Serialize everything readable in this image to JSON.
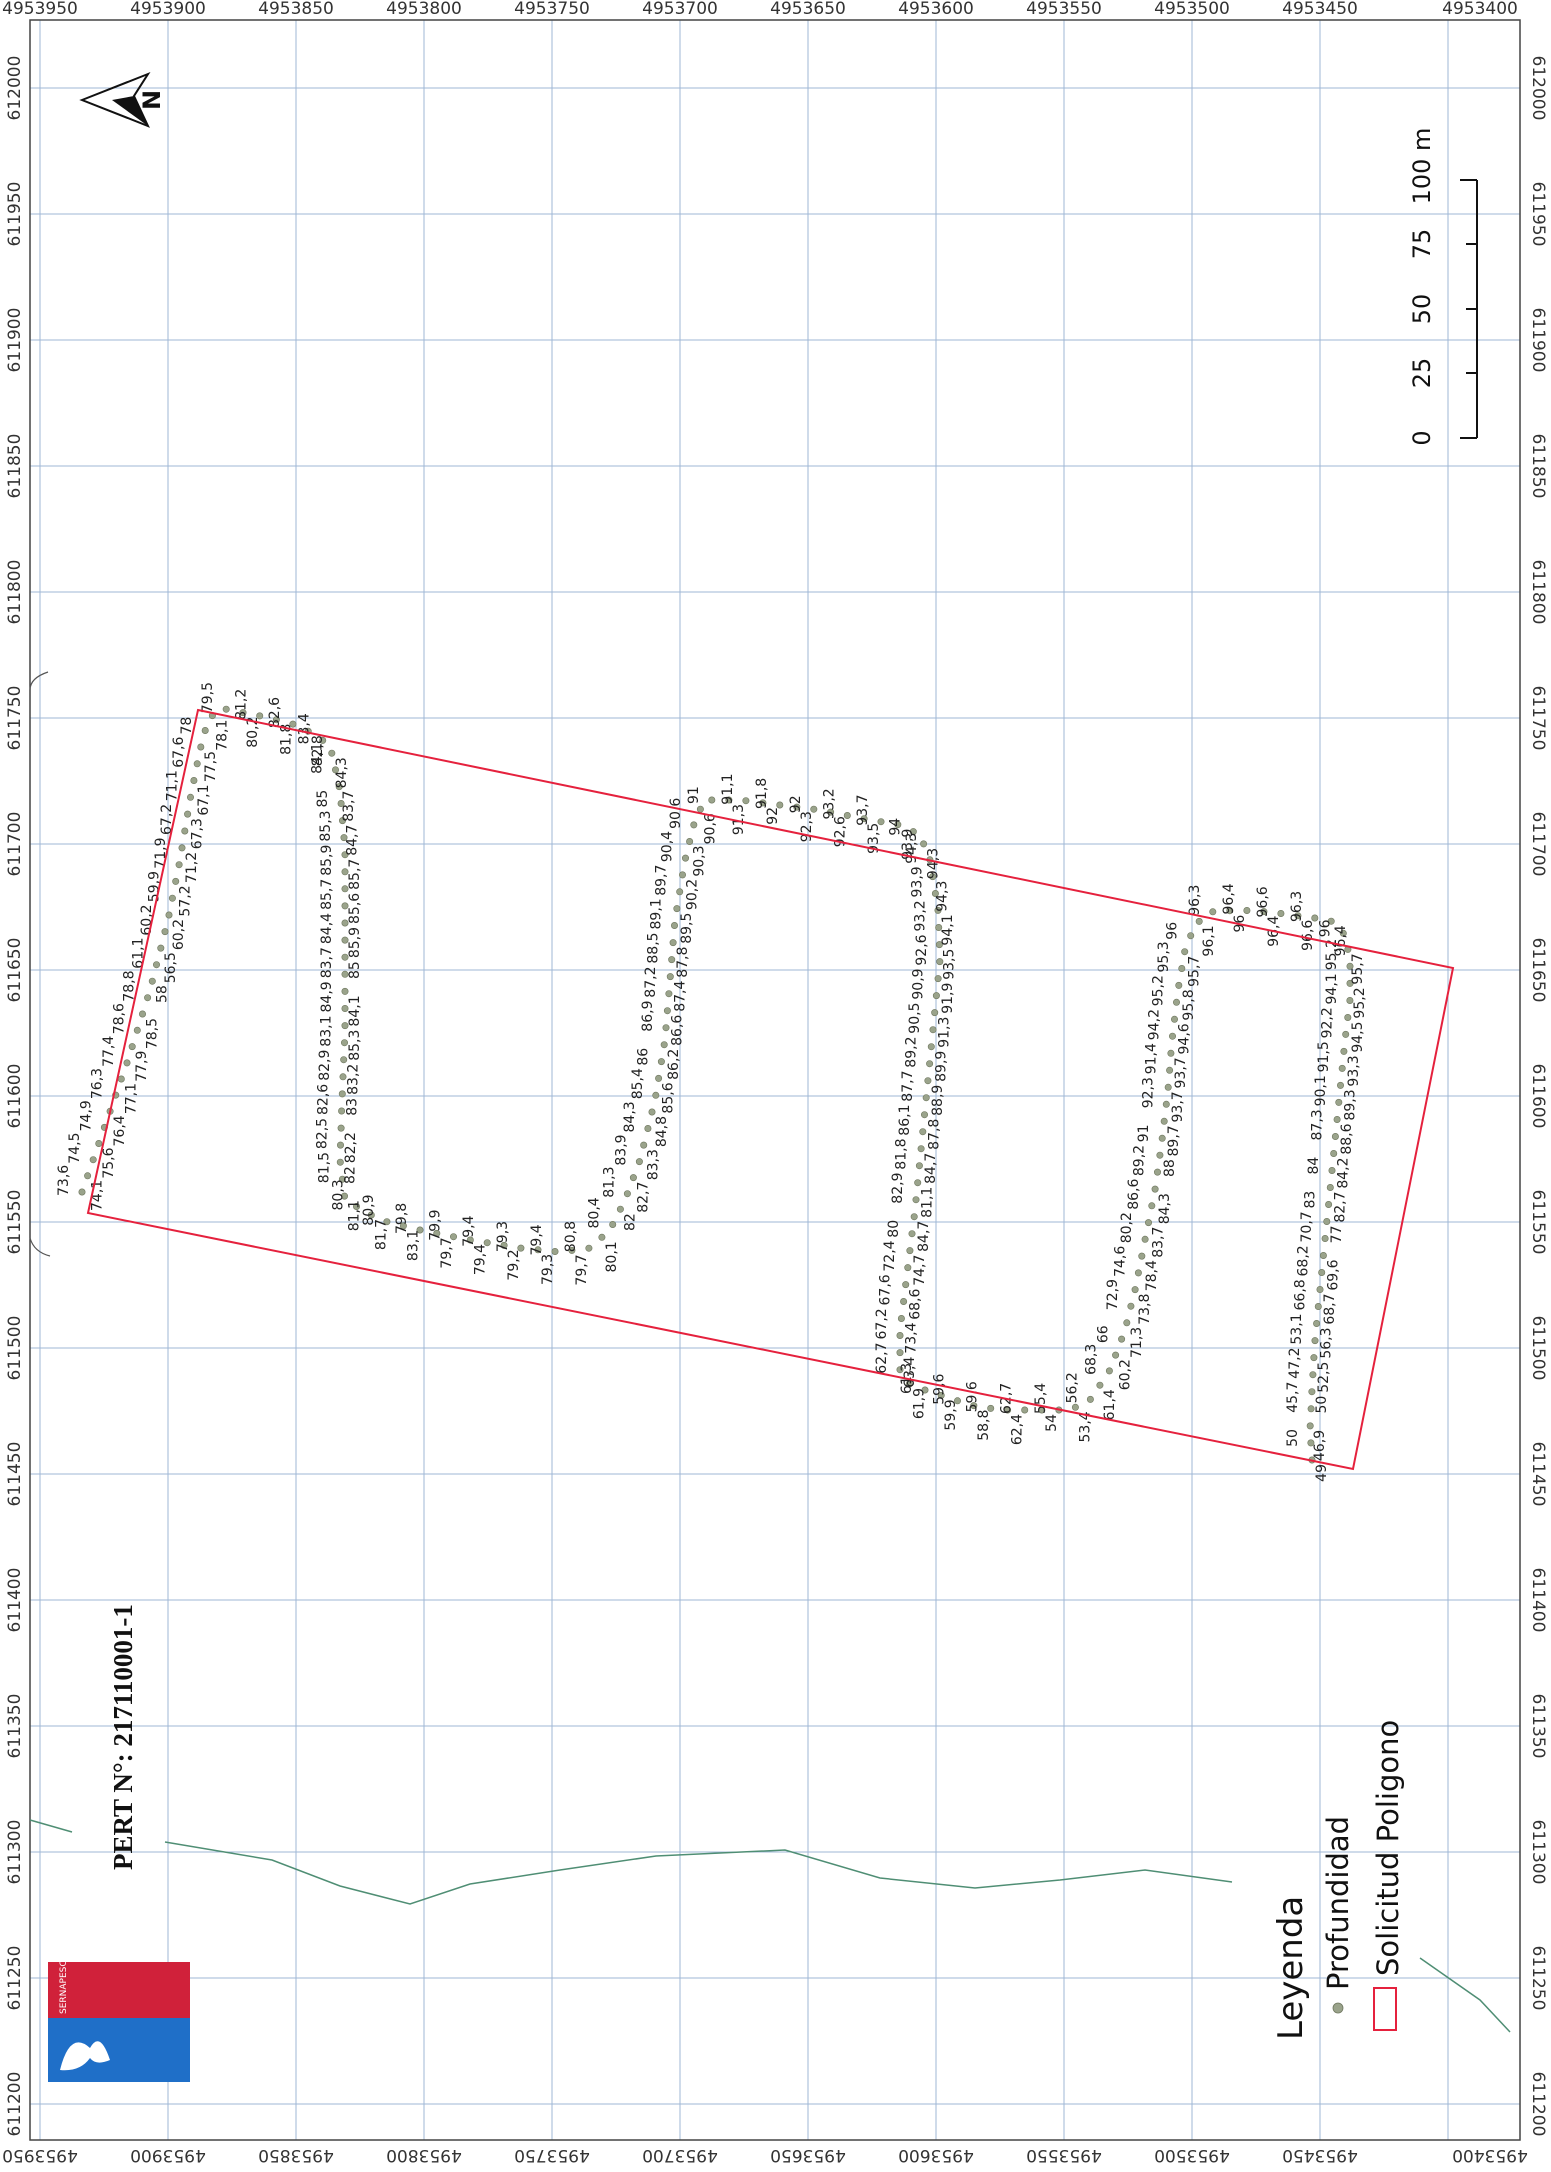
{
  "map": {
    "grid_x_labels": [
      "4953950",
      "4953900",
      "4953850",
      "4953800",
      "4953750",
      "4953700",
      "4953650",
      "4953600",
      "4953550",
      "4953500",
      "4953450",
      "4953400"
    ],
    "grid_y_labels": [
      "612000",
      "611950",
      "611900",
      "611850",
      "611800",
      "611750",
      "611700",
      "611650",
      "611600",
      "611550",
      "611500",
      "611450",
      "611400",
      "611350",
      "611300",
      "611250",
      "611200"
    ],
    "north_label": "N",
    "scale_labels": [
      "0",
      "25",
      "50",
      "75",
      "100 m"
    ],
    "pert_number": "PERT N°: 217110001-1",
    "legend": {
      "title": "Leyenda",
      "items": [
        {
          "label": "Profundidad"
        },
        {
          "label": "Solicitud Poligono"
        }
      ]
    },
    "logo_text": "SERNAPESCA",
    "colors": {
      "polygon": "#e5213d",
      "grid": "#9fb7d6",
      "depth_point": "#9aa38b",
      "coastline": "#4f8e74",
      "logo_red": "#d0213a",
      "logo_blue": "#1f6fc8"
    },
    "depth_labels": [
      "73,6",
      "74,1",
      "74,5",
      "75,6",
      "74,9",
      "76,4",
      "76,3",
      "77,1",
      "77,4",
      "77,9",
      "78,6",
      "78,5",
      "78,8",
      "58",
      "61,1",
      "56,5",
      "60,2",
      "60,2",
      "59,9",
      "57,2",
      "71,9",
      "71,2",
      "67,2",
      "67,3",
      "71,1",
      "67,1",
      "67,6",
      "77,5",
      "78",
      "78,1",
      "79,5",
      "80,2",
      "81,2",
      "81,8",
      "82,6",
      "82,8",
      "83,4",
      "84,3",
      "84,1",
      "83,7",
      "85",
      "84,7",
      "85,3",
      "85,7",
      "85,9",
      "85,6",
      "85,7",
      "85,9",
      "84,4",
      "85",
      "83,7",
      "84,1",
      "84,9",
      "85,3",
      "83,1",
      "83,2",
      "82,9",
      "83",
      "82,6",
      "82,2",
      "82,5",
      "82",
      "81,5",
      "81,1",
      "80,3",
      "81,7",
      "80,9",
      "83,1",
      "79,8",
      "79,7",
      "79,9",
      "79,4",
      "79,4",
      "79,2",
      "79,3",
      "79,3",
      "79,4",
      "79,7",
      "80,8",
      "80,1",
      "80,4",
      "82",
      "81,3",
      "82,7",
      "83,9",
      "83,3",
      "84,3",
      "84,8",
      "85,4",
      "85,6",
      "86",
      "86,2",
      "86,9",
      "86,6",
      "87,2",
      "87,4",
      "88,5",
      "87,8",
      "89,1",
      "89,5",
      "89,7",
      "90,2",
      "90,4",
      "90,3",
      "90,6",
      "90,6",
      "91",
      "91,3",
      "91,1",
      "92",
      "91,8",
      "92,3",
      "92",
      "92,6",
      "93,2",
      "93,5",
      "93,7",
      "93,9",
      "94",
      "94,3",
      "94,3",
      "94,3",
      "93,9",
      "94,1",
      "93,2",
      "93,5",
      "92,6",
      "91,9",
      "90,9",
      "91,3",
      "90,5",
      "89,9",
      "89,2",
      "88,9",
      "87,7",
      "87,8",
      "86,1",
      "84,7",
      "81,8",
      "81,1",
      "82,9",
      "84,7",
      "80",
      "74,7",
      "72,4",
      "68,6",
      "67,6",
      "73,4",
      "67,2",
      "63,4",
      "62,7",
      "61,9",
      "61,3",
      "59,9",
      "59,6",
      "58,8",
      "59,6",
      "62,4",
      "62,7",
      "54",
      "55,4",
      "53,4",
      "56,2",
      "61,4",
      "68,3",
      "60,2",
      "66",
      "71,3",
      "72,9",
      "73,8",
      "74,6",
      "78,4",
      "80,2",
      "83,7",
      "86,6",
      "84,3",
      "89,2",
      "88",
      "91",
      "89,7",
      "92,3",
      "93,7",
      "91,4",
      "93,7",
      "94,2",
      "94,6",
      "95,2",
      "95,8",
      "95,3",
      "95,7",
      "96",
      "96,1",
      "96,3",
      "96",
      "96,4",
      "96,4",
      "96,6",
      "96,6",
      "96,3",
      "96,4",
      "96",
      "95,7",
      "95,2",
      "95,2",
      "94,1",
      "94,5",
      "92,2",
      "93,3",
      "91,5",
      "89,3",
      "90,1",
      "88,6",
      "87,3",
      "84,2",
      "84",
      "82,7",
      "83",
      "77",
      "70,7",
      "69,6",
      "68,2",
      "68,7",
      "66,8",
      "56,3",
      "53,1",
      "52,5",
      "47,2",
      "50",
      "45,7",
      "46,9",
      "50",
      "49"
    ]
  }
}
